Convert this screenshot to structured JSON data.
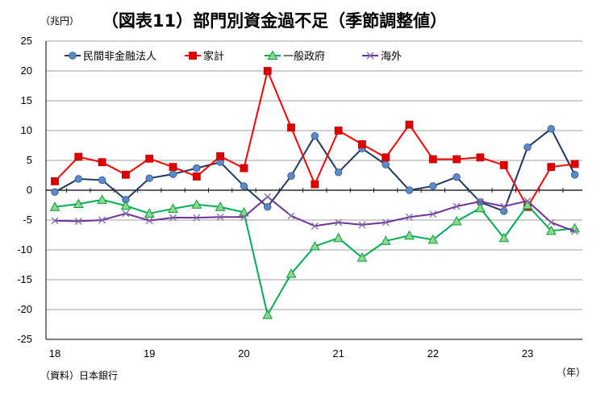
{
  "chart_data": {
    "type": "line",
    "title": "（図表11）部門別資金過不足（季節調整値）",
    "unit_label": "（兆円）",
    "x_unit_label": "（年）",
    "source": "（資料）日本銀行",
    "ylim": [
      -25,
      25
    ],
    "ytick_step": 5,
    "yticks": [
      "25",
      "20",
      "15",
      "10",
      "5",
      "0",
      "-5",
      "-10",
      "-15",
      "-20",
      "-25"
    ],
    "year_ticks": [
      "18",
      "19",
      "20",
      "21",
      "22",
      "23"
    ],
    "n_points": 23,
    "grid": true,
    "legend_position": "top-left",
    "series": [
      {
        "name": "民間非金融法人",
        "color": "#1f3864",
        "marker": "circle",
        "marker_color": "#5b8ac6",
        "values": [
          -0.3,
          1.9,
          1.7,
          -1.6,
          2.0,
          2.7,
          3.7,
          4.7,
          0.7,
          -2.8,
          2.4,
          9.1,
          3.0,
          7.0,
          4.3,
          0.0,
          0.7,
          2.2,
          -2.0,
          -3.5,
          7.2,
          10.3,
          2.6
        ]
      },
      {
        "name": "家計",
        "color": "#ff0000",
        "marker": "square",
        "marker_color": "#e00000",
        "values": [
          1.5,
          5.6,
          4.7,
          2.6,
          5.3,
          3.9,
          2.3,
          5.7,
          3.7,
          20.0,
          10.5,
          1.0,
          10.0,
          7.7,
          5.5,
          11.0,
          5.2,
          5.2,
          5.5,
          4.2,
          -2.8,
          3.9,
          4.4
        ]
      },
      {
        "name": "一般政府",
        "color": "#00b050",
        "marker": "triangle",
        "marker_color": "#8fd88a",
        "values": [
          -2.8,
          -2.3,
          -1.6,
          -2.6,
          -3.9,
          -3.1,
          -2.4,
          -2.8,
          -3.7,
          -20.9,
          -14.0,
          -9.4,
          -8.0,
          -11.3,
          -8.5,
          -7.6,
          -8.3,
          -5.2,
          -3.0,
          -8.0,
          -2.5,
          -6.8,
          -6.4
        ]
      },
      {
        "name": "海外",
        "color": "#7030a0",
        "marker": "x",
        "marker_color": "#7f6fa0",
        "values": [
          -5.1,
          -5.2,
          -5.0,
          -3.9,
          -5.1,
          -4.6,
          -4.6,
          -4.5,
          -4.5,
          -1.1,
          -4.3,
          -6.0,
          -5.4,
          -5.8,
          -5.4,
          -4.5,
          -4.0,
          -2.7,
          -1.9,
          -2.7,
          -1.8,
          -5.4,
          -6.9
        ]
      }
    ]
  }
}
